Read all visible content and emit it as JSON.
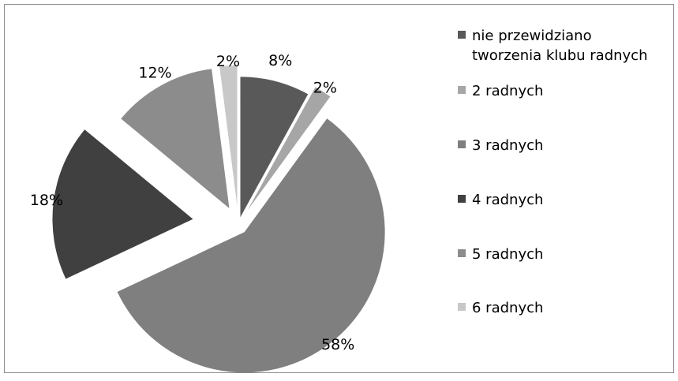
{
  "chart_data": {
    "type": "pie",
    "exploded": true,
    "categories": [
      "nie przewidziano tworzenia klubu radnych",
      "2 radnych",
      "3 radnych",
      "4 radnych",
      "5 radnych",
      "6 radnych"
    ],
    "values": [
      8,
      2,
      58,
      18,
      12,
      2
    ],
    "value_labels": [
      "8%",
      "2%",
      "58%",
      "18%",
      "12%",
      "2%"
    ],
    "colors": [
      "#595959",
      "#a6a6a6",
      "#7f7f7f",
      "#404040",
      "#8c8c8c",
      "#c8c8c8"
    ],
    "legend_position": "right",
    "start_angle_deg": 0,
    "direction": "clockwise"
  }
}
